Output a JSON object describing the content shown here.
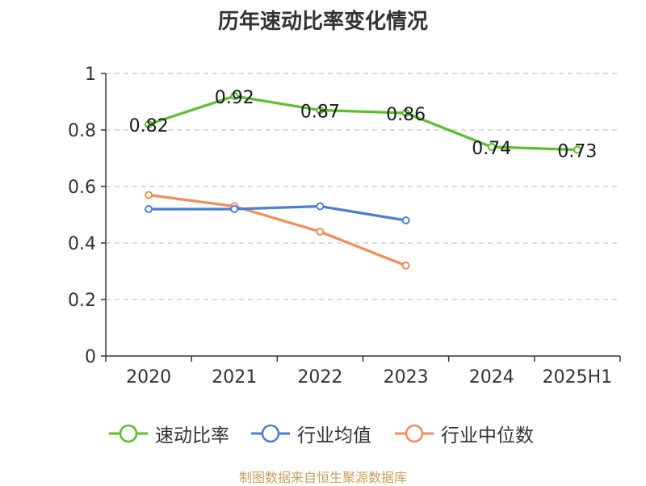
{
  "chart_data": {
    "type": "line",
    "title": "历年速动比率变化情况",
    "categories": [
      "2020",
      "2021",
      "2022",
      "2023",
      "2024",
      "2025H1"
    ],
    "ylim": [
      0,
      1
    ],
    "yticks": [
      "0",
      "0.2",
      "0.4",
      "0.6",
      "0.8",
      "1"
    ],
    "ytick_values": [
      0,
      0.2,
      0.4,
      0.6,
      0.8,
      1
    ],
    "grid": true,
    "legend_position": "bottom",
    "series": [
      {
        "name": "速动比率",
        "color": "#5bbf2a",
        "values": [
          0.82,
          0.92,
          0.87,
          0.86,
          0.74,
          0.73
        ],
        "labels": [
          "0.82",
          "0.92",
          "0.87",
          "0.86",
          "0.74",
          "0.73"
        ]
      },
      {
        "name": "行业均值",
        "color": "#4a7fd6",
        "values": [
          0.52,
          0.52,
          0.53,
          0.48,
          null,
          null
        ]
      },
      {
        "name": "行业中位数",
        "color": "#f28c58",
        "values": [
          0.57,
          0.53,
          0.44,
          0.32,
          null,
          null
        ]
      }
    ]
  },
  "source": "制图数据来自恒生聚源数据库"
}
